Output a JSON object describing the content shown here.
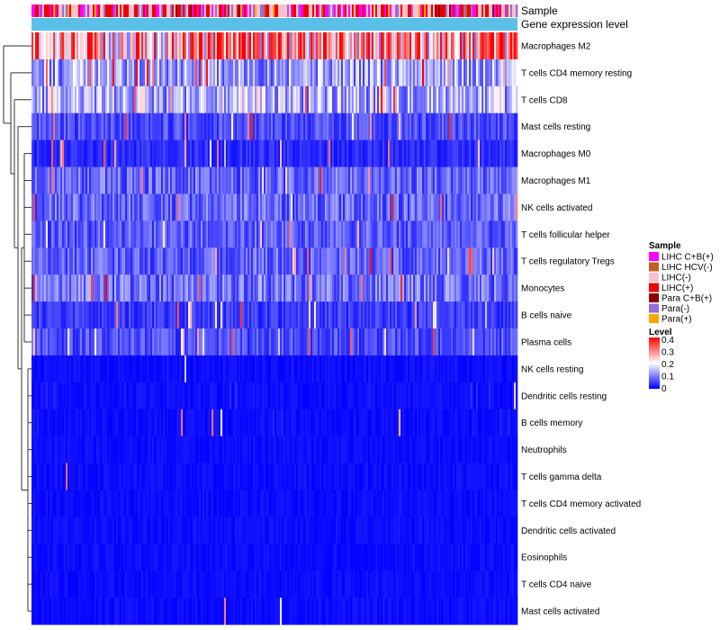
{
  "chart_data": {
    "type": "heatmap",
    "annotation_tracks": [
      {
        "name": "Sample",
        "kind": "categorical"
      },
      {
        "name": "Gene expression level",
        "kind": "continuous"
      }
    ],
    "rows": [
      {
        "label": "Macrophages M2",
        "mean": 0.26
      },
      {
        "label": "T cells CD4 memory resting",
        "mean": 0.13
      },
      {
        "label": "T cells CD8",
        "mean": 0.14
      },
      {
        "label": "Mast cells resting",
        "mean": 0.06
      },
      {
        "label": "Macrophages M0",
        "mean": 0.035
      },
      {
        "label": "Macrophages M1",
        "mean": 0.08
      },
      {
        "label": "NK cells activated",
        "mean": 0.08
      },
      {
        "label": "T cells follicular helper",
        "mean": 0.07
      },
      {
        "label": "T cells regulatory  Tregs",
        "mean": 0.075
      },
      {
        "label": "Monocytes",
        "mean": 0.09
      },
      {
        "label": "B cells naive",
        "mean": 0.045
      },
      {
        "label": "Plasma cells",
        "mean": 0.06
      },
      {
        "label": "NK cells resting",
        "mean": 0.015
      },
      {
        "label": "Dendritic cells resting",
        "mean": 0.025
      },
      {
        "label": "B cells memory",
        "mean": 0.02
      },
      {
        "label": "Neutrophils",
        "mean": 0.012
      },
      {
        "label": "T cells gamma delta",
        "mean": 0.01
      },
      {
        "label": "T cells CD4 memory activated",
        "mean": 0.01
      },
      {
        "label": "Dendritic cells activated",
        "mean": 0.01
      },
      {
        "label": "Eosinophils",
        "mean": 0.005
      },
      {
        "label": "T cells CD4 naive",
        "mean": 0.006
      },
      {
        "label": "Mast cells activated",
        "mean": 0.008
      }
    ],
    "sample_legend": {
      "title": "Sample",
      "items": [
        {
          "label": "LIHC C+B(+)",
          "color": "#FF00FF"
        },
        {
          "label": "LIHC HCV(-)",
          "color": "#C06020"
        },
        {
          "label": "LIHC(-)",
          "color": "#FFC0CB"
        },
        {
          "label": "LIHC(+)",
          "color": "#EE0000"
        },
        {
          "label": "Para C+B(+)",
          "color": "#8B0000"
        },
        {
          "label": "Para(-)",
          "color": "#9370DB"
        },
        {
          "label": "Para(+)",
          "color": "#FFA500"
        }
      ]
    },
    "level_legend": {
      "title": "Level",
      "ticks": [
        "0.4",
        "0.3",
        "0.2",
        "0.1",
        "0"
      ],
      "range": [
        0,
        0.4
      ],
      "colors": [
        "#0000FF",
        "#FFFFFF",
        "#FF0000"
      ]
    },
    "expression_color": "#5BC0E8"
  }
}
